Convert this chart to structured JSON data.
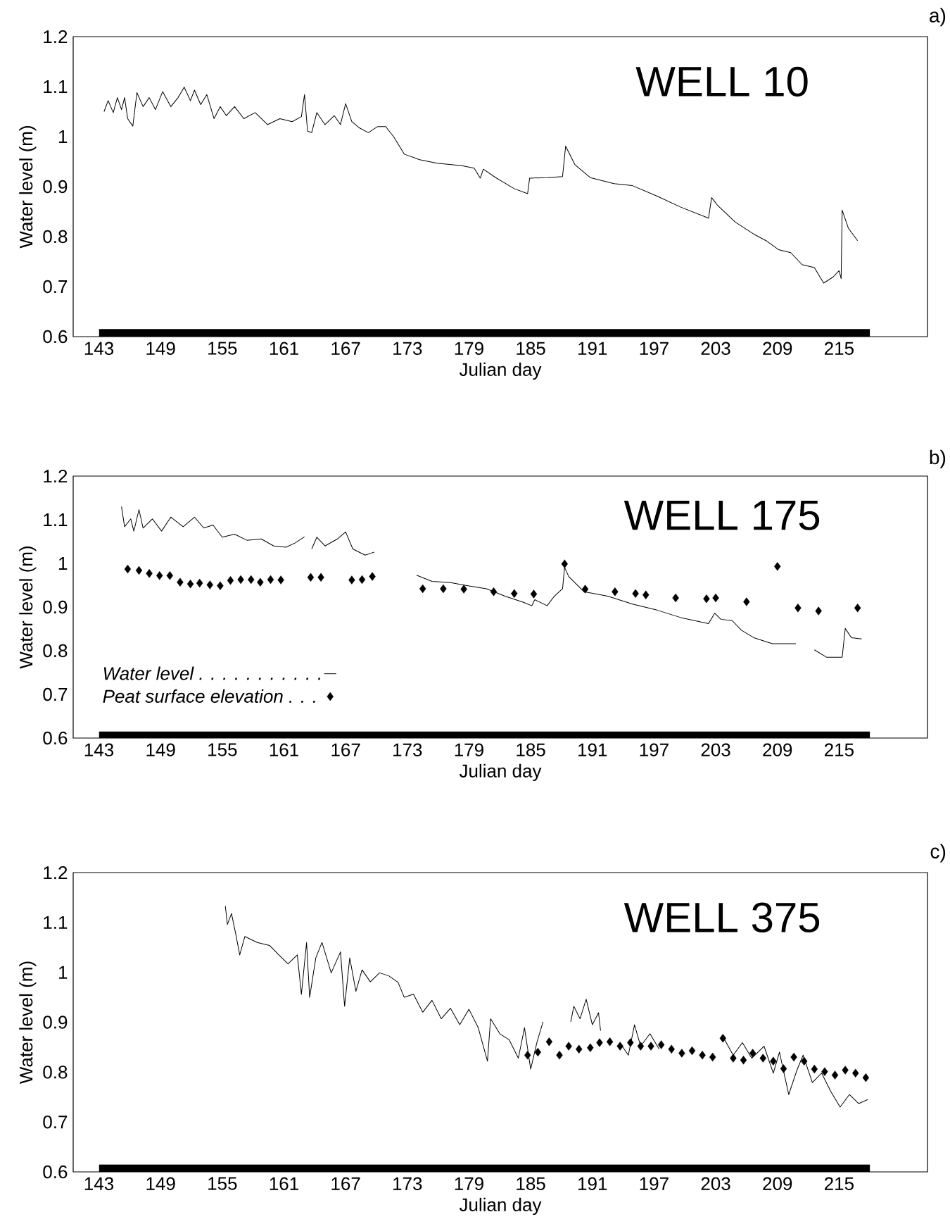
{
  "chart_data": [
    {
      "type": "line",
      "title": "WELL 10",
      "subtitle": "a)",
      "xlabel": "Julian day",
      "ylabel": "Water level (m)",
      "xlim": [
        140.5,
        223.6
      ],
      "ylim": [
        0.6,
        1.2
      ],
      "xticks": [
        143,
        149,
        155,
        161,
        167,
        173,
        179,
        185,
        191,
        197,
        203,
        209,
        215
      ],
      "yticks": [
        0.6,
        0.7,
        0.8,
        0.9,
        1,
        1.1,
        1.2
      ],
      "series": [
        {
          "type": "line",
          "color": "#000000",
          "x": [
            143.5,
            143.9,
            144.4,
            144.8,
            145.2,
            145.5,
            145.8,
            146.3,
            146.7,
            147.3,
            147.9,
            148.5,
            149.2,
            150.0,
            150.7,
            151.3,
            151.9,
            152.3,
            152.9,
            153.5,
            154.2,
            154.8,
            155.4,
            156.2,
            157.1,
            158.2,
            159.4,
            160.6,
            161.8,
            162.7,
            163.0,
            163.3,
            163.7,
            164.2,
            165.0,
            165.9,
            166.5,
            167.0,
            167.6,
            168.3,
            169.2,
            170.1,
            170.9,
            171.7,
            172.7,
            174.2,
            175.9,
            178.3,
            179.5,
            180.1,
            180.4,
            181.6,
            183.4,
            184.7,
            184.9,
            186.6,
            188.1,
            188.4,
            189.3,
            190.8,
            193.1,
            194.9,
            197.3,
            199.6,
            202.3,
            202.6,
            203.2,
            204.9,
            206.7,
            207.9,
            209.1,
            210.3,
            211.4,
            212.6,
            213.5,
            214.4,
            215.0,
            215.2,
            215.3,
            215.9,
            216.8
          ],
          "values": [
            1.05,
            1.072,
            1.048,
            1.078,
            1.054,
            1.078,
            1.036,
            1.021,
            1.088,
            1.06,
            1.078,
            1.054,
            1.09,
            1.06,
            1.078,
            1.099,
            1.072,
            1.093,
            1.064,
            1.084,
            1.036,
            1.06,
            1.042,
            1.06,
            1.036,
            1.048,
            1.024,
            1.036,
            1.03,
            1.04,
            1.084,
            1.011,
            1.008,
            1.048,
            1.024,
            1.042,
            1.024,
            1.066,
            1.03,
            1.018,
            1.008,
            1.02,
            1.02,
            0.999,
            0.965,
            0.954,
            0.947,
            0.942,
            0.937,
            0.917,
            0.935,
            0.918,
            0.896,
            0.886,
            0.917,
            0.918,
            0.92,
            0.981,
            0.944,
            0.918,
            0.906,
            0.902,
            0.881,
            0.859,
            0.837,
            0.878,
            0.862,
            0.829,
            0.805,
            0.792,
            0.774,
            0.768,
            0.744,
            0.738,
            0.707,
            0.719,
            0.732,
            0.716,
            0.853,
            0.817,
            0.792
          ]
        },
        {
          "type": "area",
          "color": "#000000",
          "x": [
            143,
            218
          ],
          "values": [
            0.615,
            0.615
          ]
        }
      ]
    },
    {
      "type": "line",
      "title": "WELL 175",
      "subtitle": "b)",
      "xlabel": "Julian day",
      "ylabel": "Water level (m)",
      "xlim": [
        140.5,
        223.6
      ],
      "ylim": [
        0.6,
        1.2
      ],
      "xticks": [
        143,
        149,
        155,
        161,
        167,
        173,
        179,
        185,
        191,
        197,
        203,
        209,
        215
      ],
      "yticks": [
        0.6,
        0.7,
        0.8,
        0.9,
        1,
        1.1,
        1.2
      ],
      "legend": "bottom left",
      "series": [
        {
          "type": "line",
          "name": "*Water level . . . . . . . . . . .*",
          "color": "#000000",
          "x": [
            145.2,
            145.5,
            146.1,
            146.4,
            146.9,
            147.3,
            148.2,
            149.1,
            150.0,
            151.2,
            152.3,
            153.2,
            154.1,
            155.0,
            156.2,
            157.4,
            158.8,
            160.0,
            161.2,
            162.1,
            163.0,
            163.4,
            163.7,
            164.2,
            165.0,
            166.2,
            167.0,
            167.7,
            168.9,
            169.8,
            171.8,
            173.9,
            175.4,
            177.2,
            178.9,
            180.7,
            182.5,
            184.3,
            185.1,
            185.4,
            186.6,
            187.3,
            188.1,
            188.3,
            188.7,
            190.2,
            192.5,
            194.9,
            197.3,
            199.6,
            202.3,
            202.9,
            203.5,
            204.6,
            205.5,
            206.7,
            208.5,
            210.8,
            211.7,
            212.6,
            213.8,
            215.3,
            215.6,
            216.2,
            217.2
          ],
          "values": [
            1.13,
            1.084,
            1.102,
            1.074,
            1.123,
            1.081,
            1.102,
            1.074,
            1.106,
            1.084,
            1.106,
            1.081,
            1.088,
            1.06,
            1.067,
            1.053,
            1.056,
            1.04,
            1.037,
            1.047,
            1.061,
            null,
            1.033,
            1.06,
            1.04,
            1.056,
            1.072,
            1.033,
            1.019,
            1.026,
            null,
            0.973,
            0.959,
            0.956,
            0.949,
            0.942,
            0.925,
            0.911,
            0.903,
            0.917,
            0.903,
            0.925,
            0.942,
            0.991,
            0.97,
            0.935,
            0.925,
            0.907,
            0.893,
            0.876,
            0.862,
            0.886,
            0.872,
            0.869,
            0.847,
            0.83,
            0.816,
            0.816,
            null,
            0.802,
            0.785,
            0.785,
            0.851,
            0.83,
            0.827
          ]
        },
        {
          "type": "scatter",
          "name": "*Peat surface elevation . . .*",
          "marker": "diamond",
          "color": "#000000",
          "x": [
            145.8,
            146.9,
            147.9,
            148.9,
            149.9,
            150.9,
            151.9,
            152.8,
            153.8,
            154.8,
            155.8,
            156.8,
            157.8,
            158.7,
            159.7,
            160.7,
            163.6,
            164.6,
            167.6,
            168.6,
            169.6,
            174.5,
            176.5,
            178.5,
            181.4,
            183.4,
            185.3,
            188.3,
            190.3,
            193.2,
            195.2,
            196.2,
            199.1,
            202.1,
            203.0,
            206.0,
            209.0,
            211.0,
            213.0,
            216.8
          ],
          "values": [
            0.987,
            0.984,
            0.977,
            0.972,
            0.972,
            0.957,
            0.953,
            0.955,
            0.951,
            0.949,
            0.961,
            0.963,
            0.963,
            0.957,
            0.963,
            0.962,
            0.968,
            0.968,
            0.962,
            0.963,
            0.97,
            0.942,
            0.942,
            0.941,
            0.935,
            0.931,
            0.93,
            0.999,
            0.941,
            0.935,
            0.931,
            0.928,
            0.921,
            0.919,
            0.921,
            0.912,
            0.993,
            0.898,
            0.891,
            0.898
          ]
        },
        {
          "type": "area",
          "color": "#000000",
          "x": [
            143,
            218
          ],
          "values": [
            0.615,
            0.615
          ]
        }
      ]
    },
    {
      "type": "line",
      "title": "WELL 375",
      "subtitle": "c)",
      "xlabel": "Julian day",
      "ylabel": "Water level (m)",
      "xlim": [
        140.5,
        223.6
      ],
      "ylim": [
        0.6,
        1.2
      ],
      "xticks": [
        143,
        149,
        155,
        161,
        167,
        173,
        179,
        185,
        191,
        197,
        203,
        209,
        215
      ],
      "yticks": [
        0.6,
        0.7,
        0.8,
        0.9,
        1,
        1.1,
        1.2
      ],
      "series": [
        {
          "type": "line",
          "color": "#000000",
          "x": [
            155.3,
            155.5,
            155.9,
            156.3,
            156.7,
            157.2,
            158.4,
            159.6,
            160.5,
            161.4,
            162.3,
            162.7,
            163.2,
            163.5,
            164.1,
            164.7,
            165.6,
            166.5,
            166.9,
            167.4,
            168.0,
            168.6,
            169.4,
            170.3,
            171.2,
            172.1,
            172.7,
            173.6,
            174.5,
            175.4,
            176.3,
            177.2,
            178.1,
            179.0,
            179.9,
            180.8,
            181.1,
            182.0,
            182.9,
            183.8,
            184.4,
            185.0,
            185.6,
            186.2,
            187.5,
            188.9,
            189.2,
            189.8,
            190.4,
            191.0,
            191.6,
            191.8,
            192.8,
            193.9,
            194.5,
            195.1,
            195.7,
            196.6,
            197.5,
            200.5,
            203.7,
            204.7,
            205.6,
            206.5,
            207.7,
            208.6,
            209.2,
            210.1,
            210.9,
            211.5,
            212.4,
            213.3,
            214.2,
            215.1,
            216.0,
            216.9,
            217.8
          ],
          "values": [
            1.133,
            1.096,
            1.118,
            1.078,
            1.035,
            1.072,
            1.06,
            1.054,
            1.035,
            1.017,
            1.035,
            0.956,
            1.06,
            0.95,
            1.029,
            1.06,
            0.999,
            1.041,
            0.932,
            1.029,
            0.962,
            1.005,
            0.981,
            0.999,
            0.993,
            0.98,
            0.95,
            0.956,
            0.92,
            0.944,
            0.907,
            0.928,
            0.895,
            0.926,
            0.889,
            0.822,
            0.907,
            0.877,
            0.865,
            0.828,
            0.889,
            0.806,
            0.859,
            0.901,
            null,
            0.901,
            0.932,
            0.907,
            0.946,
            0.895,
            0.919,
            0.883,
            null,
            0.852,
            0.834,
            0.895,
            0.852,
            0.877,
            0.846,
            null,
            0.871,
            0.834,
            0.859,
            0.828,
            0.852,
            0.798,
            0.84,
            0.755,
            0.804,
            0.834,
            0.779,
            0.798,
            0.761,
            0.73,
            0.755,
            0.737,
            0.745
          ]
        },
        {
          "type": "scatter",
          "marker": "diamond",
          "color": "#000000",
          "x": [
            184.7,
            185.7,
            186.8,
            187.8,
            188.7,
            189.7,
            190.8,
            191.7,
            192.7,
            193.7,
            194.7,
            195.7,
            196.7,
            197.7,
            198.7,
            199.7,
            200.7,
            201.7,
            202.7,
            203.7,
            204.7,
            205.7,
            206.6,
            207.6,
            208.6,
            209.6,
            210.6,
            211.6,
            212.6,
            213.6,
            214.6,
            215.6,
            216.6,
            217.6
          ],
          "values": [
            0.834,
            0.84,
            0.861,
            0.834,
            0.852,
            0.846,
            0.849,
            0.859,
            0.861,
            0.852,
            0.859,
            0.852,
            0.852,
            0.855,
            0.846,
            0.838,
            0.843,
            0.834,
            0.83,
            0.868,
            0.828,
            0.824,
            0.838,
            0.828,
            0.822,
            0.807,
            0.83,
            0.822,
            0.806,
            0.801,
            0.794,
            0.804,
            0.798,
            0.789
          ]
        },
        {
          "type": "area",
          "color": "#000000",
          "x": [
            143,
            218
          ],
          "values": [
            0.615,
            0.615
          ]
        }
      ]
    }
  ]
}
